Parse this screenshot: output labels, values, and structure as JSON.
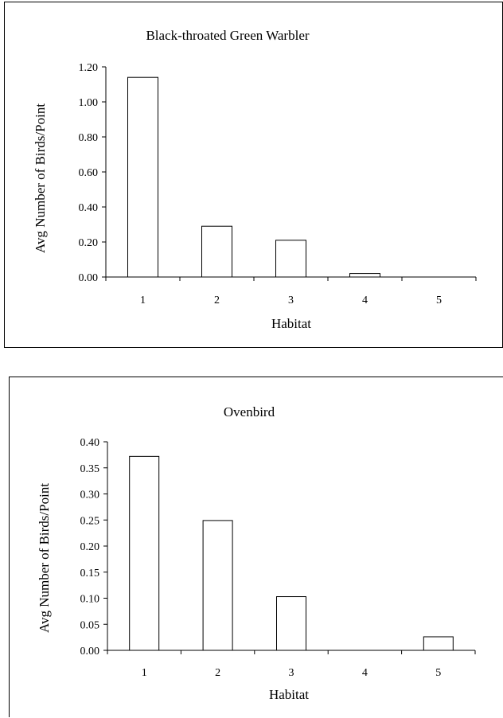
{
  "chart_data": [
    {
      "type": "bar",
      "title": "Black-throated Green Warbler",
      "xlabel": "Habitat",
      "ylabel": "Avg Number of Birds/Point",
      "categories": [
        "1",
        "2",
        "3",
        "4",
        "5"
      ],
      "values": [
        1.14,
        0.29,
        0.21,
        0.02,
        0.0
      ],
      "ylim": [
        0,
        1.2
      ],
      "yticks": [
        "0.00",
        "0.20",
        "0.40",
        "0.60",
        "0.80",
        "1.00",
        "1.20"
      ],
      "grid": false,
      "legend": "none"
    },
    {
      "type": "bar",
      "title": "Ovenbird",
      "xlabel": "Habitat",
      "ylabel": "Avg Number of Birds/Point",
      "categories": [
        "1",
        "2",
        "3",
        "4",
        "5"
      ],
      "values": [
        0.372,
        0.249,
        0.103,
        0.0,
        0.026
      ],
      "ylim": [
        0,
        0.4
      ],
      "yticks": [
        "0.00",
        "0.05",
        "0.10",
        "0.15",
        "0.20",
        "0.25",
        "0.30",
        "0.35",
        "0.40"
      ],
      "grid": false,
      "legend": "none"
    }
  ]
}
